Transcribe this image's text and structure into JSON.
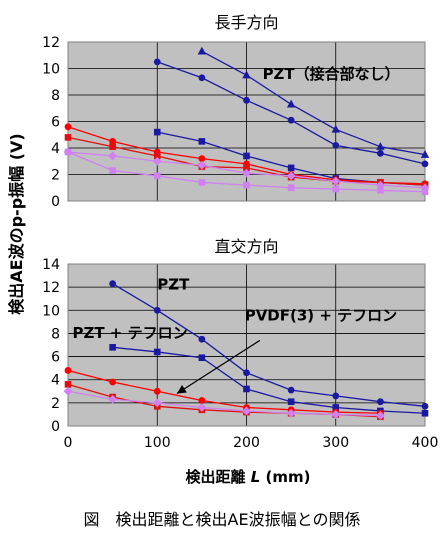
{
  "figure_caption": "図　検出距離と検出AE波振幅との関係",
  "shared_xlabel_prefix": "検出距離 ",
  "shared_xlabel_var": "L",
  "shared_xlabel_unit": " (mm)",
  "shared_ylabel": "検出AE波のp-p振幅 (V)",
  "chart_data": [
    {
      "type": "line",
      "title": "長手方向",
      "xlim": [
        0,
        400
      ],
      "ylim": [
        0,
        12
      ],
      "xticks": [
        0,
        100,
        200,
        300,
        400
      ],
      "yticks": [
        0,
        2,
        4,
        6,
        8,
        10,
        12
      ],
      "show_x_tick_labels": false,
      "grid": true,
      "plot_background": "#c0c0c0",
      "annotations": [
        {
          "text": "PZT（接合部なし）",
          "x": 218,
          "y": 9.2
        }
      ],
      "series": [
        {
          "color": "#1a1aa0",
          "marker": "triangle",
          "points": [
            [
              150,
              11.3
            ],
            [
              200,
              9.5
            ],
            [
              250,
              7.3
            ],
            [
              300,
              5.4
            ],
            [
              350,
              4.1
            ],
            [
              400,
              3.5
            ]
          ]
        },
        {
          "color": "#1a1aa0",
          "marker": "circle",
          "points": [
            [
              100,
              10.5
            ],
            [
              150,
              9.3
            ],
            [
              200,
              7.6
            ],
            [
              250,
              6.1
            ],
            [
              300,
              4.2
            ],
            [
              350,
              3.6
            ],
            [
              400,
              2.8
            ]
          ]
        },
        {
          "color": "#1a1aa0",
          "marker": "square",
          "points": [
            [
              100,
              5.2
            ],
            [
              150,
              4.5
            ],
            [
              200,
              3.4
            ],
            [
              250,
              2.5
            ],
            [
              300,
              1.7
            ],
            [
              350,
              1.4
            ],
            [
              400,
              1.2
            ]
          ]
        },
        {
          "color": "#ff0000",
          "marker": "circle",
          "points": [
            [
              0,
              5.6
            ],
            [
              50,
              4.5
            ],
            [
              100,
              3.7
            ],
            [
              150,
              3.2
            ],
            [
              200,
              2.8
            ],
            [
              250,
              2.0
            ],
            [
              300,
              1.6
            ],
            [
              350,
              1.4
            ],
            [
              400,
              1.3
            ]
          ]
        },
        {
          "color": "#e01010",
          "marker": "square",
          "points": [
            [
              0,
              4.8
            ],
            [
              50,
              4.1
            ],
            [
              100,
              3.4
            ],
            [
              150,
              2.6
            ],
            [
              200,
              2.5
            ],
            [
              250,
              1.8
            ],
            [
              300,
              1.5
            ],
            [
              350,
              1.4
            ],
            [
              400,
              1.2
            ]
          ]
        },
        {
          "color": "#d080f0",
          "marker": "diamond",
          "points": [
            [
              0,
              3.7
            ],
            [
              50,
              3.4
            ],
            [
              100,
              3.0
            ],
            [
              150,
              2.7
            ],
            [
              200,
              2.1
            ],
            [
              250,
              1.9
            ],
            [
              300,
              1.5
            ],
            [
              350,
              1.2
            ],
            [
              400,
              1.0
            ]
          ]
        },
        {
          "color": "#d080f0",
          "marker": "square",
          "points": [
            [
              0,
              3.7
            ],
            [
              50,
              2.3
            ],
            [
              100,
              1.9
            ],
            [
              150,
              1.4
            ],
            [
              200,
              1.2
            ],
            [
              250,
              1.0
            ],
            [
              300,
              0.9
            ],
            [
              350,
              0.8
            ],
            [
              400,
              0.7
            ]
          ]
        }
      ]
    },
    {
      "type": "line",
      "title": "直交方向",
      "xlim": [
        0,
        400
      ],
      "ylim": [
        0,
        14
      ],
      "xticks": [
        0,
        100,
        200,
        300,
        400
      ],
      "yticks": [
        0,
        2,
        4,
        6,
        8,
        10,
        12,
        14
      ],
      "show_x_tick_labels": true,
      "grid": true,
      "plot_background": "#c0c0c0",
      "annotations": [
        {
          "text": "PZT",
          "x": 100,
          "y": 11.8
        },
        {
          "text": "PZT + テフロン",
          "x": 5,
          "y": 7.6
        },
        {
          "text": "PVDF(3) + テフロン",
          "x": 198,
          "y": 9.1
        }
      ],
      "arrows": [
        {
          "from": [
            215,
            7.4
          ],
          "to": [
            122,
            2.8
          ]
        }
      ],
      "series": [
        {
          "color": "#1a1aa0",
          "marker": "circle",
          "points": [
            [
              50,
              12.3
            ],
            [
              100,
              10.0
            ],
            [
              150,
              7.5
            ],
            [
              200,
              4.6
            ],
            [
              250,
              3.1
            ],
            [
              300,
              2.6
            ],
            [
              350,
              2.1
            ],
            [
              400,
              1.7
            ]
          ]
        },
        {
          "color": "#1a1aa0",
          "marker": "square",
          "points": [
            [
              50,
              6.8
            ],
            [
              100,
              6.4
            ],
            [
              150,
              5.9
            ],
            [
              200,
              3.2
            ],
            [
              250,
              2.1
            ],
            [
              300,
              1.6
            ],
            [
              350,
              1.3
            ],
            [
              400,
              1.1
            ]
          ]
        },
        {
          "color": "#ff0000",
          "marker": "circle",
          "points": [
            [
              0,
              4.8
            ],
            [
              50,
              3.8
            ],
            [
              100,
              3.0
            ],
            [
              150,
              2.2
            ],
            [
              200,
              1.6
            ],
            [
              250,
              1.4
            ],
            [
              300,
              1.2
            ],
            [
              350,
              1.1
            ]
          ]
        },
        {
          "color": "#e01010",
          "marker": "square",
          "points": [
            [
              0,
              3.6
            ],
            [
              50,
              2.5
            ],
            [
              100,
              1.7
            ],
            [
              150,
              1.4
            ],
            [
              200,
              1.2
            ],
            [
              250,
              1.1
            ],
            [
              300,
              1.0
            ],
            [
              350,
              0.8
            ]
          ]
        },
        {
          "color": "#d080f0",
          "marker": "diamond",
          "points": [
            [
              0,
              3.0
            ],
            [
              50,
              2.3
            ],
            [
              100,
              2.0
            ],
            [
              150,
              1.6
            ],
            [
              200,
              1.3
            ],
            [
              250,
              1.1
            ],
            [
              300,
              1.0
            ],
            [
              350,
              0.9
            ]
          ]
        }
      ]
    }
  ]
}
